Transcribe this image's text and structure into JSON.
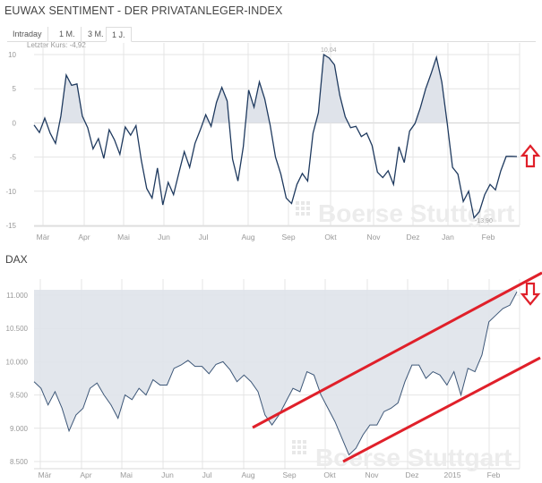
{
  "header": {
    "title": "EUWAX SENTIMENT - DER PRIVATANLEGER-INDEX",
    "tabs": [
      {
        "label": "Intraday",
        "active": false
      },
      {
        "label": "1 M.",
        "active": false
      },
      {
        "label": "3 M.",
        "active": false
      },
      {
        "label": "1 J.",
        "active": true
      }
    ],
    "last_price_label": "Letzter Kurs: -4,92"
  },
  "dax": {
    "title": "DAX"
  },
  "watermark": "Boerse Stuttgart",
  "colors": {
    "line": "#1f3a5f",
    "fill": "#dfe3ea",
    "grid": "#e2e2e2",
    "annotation_red": "#e0202a"
  },
  "chart_data": [
    {
      "type": "area",
      "title": "EUWAX SENTIMENT - DER PRIVATANLEGER-INDEX",
      "xlabel": "",
      "ylabel": "",
      "ylim": [
        -15,
        10
      ],
      "yticks": [
        "10",
        "5",
        "0",
        "-5",
        "-10",
        "-15"
      ],
      "xticks": [
        "Mär",
        "Apr",
        "Mai",
        "Jun",
        "Jul",
        "Aug",
        "Sep",
        "Okt",
        "Nov",
        "Dez",
        "Jan",
        "Feb"
      ],
      "grid": true,
      "annotations": [
        {
          "text": "10,04",
          "type": "max"
        },
        {
          "text": "-13,90",
          "type": "min"
        },
        {
          "text": "Letzter Kurs: -4,92",
          "type": "last"
        },
        {
          "text": "red up arrow",
          "type": "marker"
        }
      ],
      "series": [
        {
          "name": "EUWAX Sentiment",
          "x": [
            "Feb-24",
            "Mär-01",
            "Mär-05",
            "Mär-08",
            "Mär-12",
            "Mär-16",
            "Mär-20",
            "Mär-25",
            "Mär-29",
            "Apr-01",
            "Apr-05",
            "Apr-09",
            "Apr-13",
            "Apr-17",
            "Apr-21",
            "Apr-25",
            "Apr-29",
            "Mai-03",
            "Mai-07",
            "Mai-11",
            "Mai-15",
            "Mai-19",
            "Mai-23",
            "Mai-27",
            "Jun-01",
            "Jun-05",
            "Jun-09",
            "Jun-13",
            "Jun-17",
            "Jun-21",
            "Jun-25",
            "Jun-29",
            "Jul-03",
            "Jul-07",
            "Jul-11",
            "Jul-15",
            "Jul-19",
            "Jul-23",
            "Jul-27",
            "Aug-01",
            "Aug-05",
            "Aug-09",
            "Aug-13",
            "Aug-17",
            "Aug-21",
            "Aug-25",
            "Aug-29",
            "Sep-03",
            "Sep-07",
            "Sep-11",
            "Sep-15",
            "Sep-19",
            "Sep-23",
            "Sep-27",
            "Okt-01",
            "Okt-05",
            "Okt-09",
            "Okt-13",
            "Okt-17",
            "Okt-21",
            "Okt-25",
            "Okt-29",
            "Nov-03",
            "Nov-07",
            "Nov-11",
            "Nov-15",
            "Nov-19",
            "Nov-23",
            "Nov-27",
            "Dez-01",
            "Dez-05",
            "Dez-09",
            "Dez-13",
            "Dez-17",
            "Dez-21",
            "Dez-25",
            "Dez-29",
            "Jan-02",
            "Jan-06",
            "Jan-10",
            "Jan-14",
            "Jan-18",
            "Jan-22",
            "Jan-26",
            "Jan-30",
            "Feb-04",
            "Feb-08",
            "Feb-12",
            "Feb-16",
            "Feb-20",
            "Feb-24"
          ],
          "values": [
            -0.3,
            -1.4,
            0.7,
            -1.5,
            -3.0,
            1.0,
            7.0,
            5.5,
            5.7,
            1.0,
            -0.7,
            -3.8,
            -2.3,
            -5.2,
            -1.0,
            -2.5,
            -4.6,
            -0.6,
            -1.8,
            -0.4,
            -5.5,
            -9.6,
            -11.0,
            -6.6,
            -12.0,
            -8.7,
            -10.5,
            -7.3,
            -4.2,
            -6.5,
            -3.0,
            -1.0,
            1.2,
            -0.5,
            3.0,
            5.2,
            3.2,
            -5.3,
            -8.5,
            -3.5,
            4.8,
            2.3,
            6.0,
            3.5,
            -0.3,
            -5.0,
            -7.5,
            -11.0,
            -11.8,
            -9.0,
            -7.4,
            -8.5,
            -1.5,
            1.5,
            10.0,
            9.5,
            8.5,
            4.0,
            0.9,
            -0.7,
            -0.5,
            -2.0,
            -1.5,
            -3.3,
            -7.2,
            -8.0,
            -7.0,
            -9.0,
            -3.5,
            -5.8,
            -1.2,
            -0.1,
            2.2,
            5.0,
            7.2,
            9.6,
            6.0,
            0.0,
            -6.5,
            -7.5,
            -11.5,
            -10.0,
            -13.9,
            -13.0,
            -10.5,
            -9.0,
            -9.8,
            -7.0,
            -4.9,
            -4.9,
            -4.92
          ]
        }
      ]
    },
    {
      "type": "area",
      "title": "DAX",
      "xlabel": "",
      "ylabel": "",
      "ylim": [
        8500,
        11150
      ],
      "yticks": [
        "11.000",
        "10.500",
        "10.000",
        "9.500",
        "9.000",
        "8.500"
      ],
      "xticks": [
        "Mär",
        "Apr",
        "Mai",
        "Jun",
        "Jul",
        "Aug",
        "Sep",
        "Okt",
        "Nov",
        "Dez",
        "2015",
        "Feb"
      ],
      "grid": true,
      "annotations": [
        {
          "text": "upper trend line (red)",
          "type": "trendline"
        },
        {
          "text": "lower trend line (red)",
          "type": "trendline"
        },
        {
          "text": "red down arrow",
          "type": "marker"
        }
      ],
      "series": [
        {
          "name": "DAX",
          "x": [
            "Feb-24",
            "Mär-03",
            "Mär-07",
            "Mär-11",
            "Mär-14",
            "Mär-18",
            "Mär-22",
            "Mär-26",
            "Mär-31",
            "Apr-04",
            "Apr-08",
            "Apr-11",
            "Apr-15",
            "Apr-22",
            "Apr-28",
            "Mai-02",
            "Mai-07",
            "Mai-12",
            "Mai-16",
            "Mai-21",
            "Mai-26",
            "Jun-02",
            "Jun-06",
            "Jun-10",
            "Jun-16",
            "Jun-20",
            "Jun-26",
            "Jul-02",
            "Jul-07",
            "Jul-11",
            "Jul-16",
            "Jul-21",
            "Jul-25",
            "Jul-31",
            "Aug-04",
            "Aug-08",
            "Aug-13",
            "Aug-19",
            "Aug-25",
            "Aug-29",
            "Sep-04",
            "Sep-09",
            "Sep-15",
            "Sep-19",
            "Sep-24",
            "Sep-30",
            "Okt-06",
            "Okt-10",
            "Okt-16",
            "Okt-21",
            "Okt-27",
            "Nov-03",
            "Nov-10",
            "Nov-17",
            "Nov-24",
            "Dez-01",
            "Dez-05",
            "Dez-10",
            "Dez-15",
            "Dez-22",
            "Dez-30",
            "Jan-05",
            "Jan-09",
            "Jan-15",
            "Jan-20",
            "Jan-26",
            "Feb-02",
            "Feb-09",
            "Feb-16",
            "Feb-23"
          ],
          "values": [
            9700,
            9600,
            9350,
            9550,
            9300,
            8960,
            9200,
            9300,
            9600,
            9680,
            9500,
            9350,
            9150,
            9500,
            9430,
            9600,
            9500,
            9730,
            9650,
            9650,
            9900,
            9950,
            10020,
            9930,
            9930,
            9820,
            9960,
            10000,
            9880,
            9700,
            9800,
            9700,
            9550,
            9200,
            9050,
            9200,
            9400,
            9600,
            9550,
            9850,
            9800,
            9500,
            9300,
            9100,
            8850,
            8600,
            8700,
            8900,
            9050,
            9050,
            9250,
            9300,
            9380,
            9700,
            9950,
            9950,
            9750,
            9850,
            9800,
            9650,
            9850,
            9500,
            9900,
            9850,
            10100,
            10600,
            10700,
            10800,
            10850,
            11050
          ]
        }
      ]
    }
  ]
}
